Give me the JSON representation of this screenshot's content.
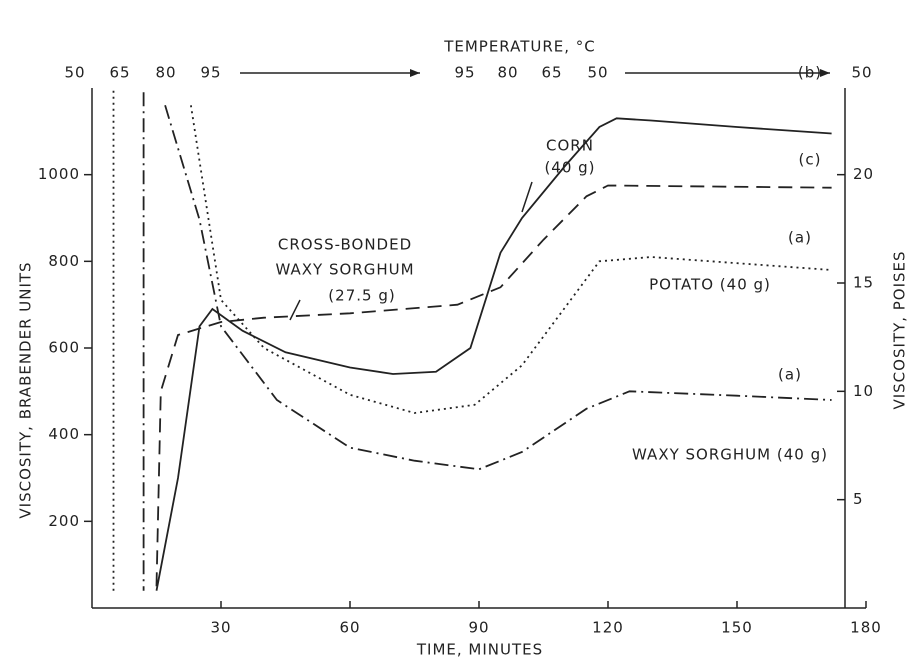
{
  "chart_data": {
    "type": "line",
    "top_axis_title": "TEMPERATURE, °C",
    "top_axis_labels": [
      50,
      65,
      80,
      95,
      95,
      80,
      65,
      50,
      50
    ],
    "xlabel": "TIME, MINUTES",
    "ylabel": "VISCOSITY, BRABENDER UNITS",
    "y2label": "VISCOSITY, POISES",
    "xlim": [
      0,
      180
    ],
    "xticks": [
      30,
      60,
      90,
      120,
      150,
      180
    ],
    "ylim": [
      0,
      1200
    ],
    "yticks": [
      200,
      400,
      600,
      800,
      1000
    ],
    "y2lim": [
      0,
      24
    ],
    "y2ticks": [
      5,
      10,
      15,
      20
    ],
    "series": [
      {
        "color": "#222",
        "style": "solid",
        "x": [
          15,
          20,
          25,
          28,
          35,
          45,
          60,
          70,
          80,
          88,
          95,
          100,
          110,
          118,
          122,
          130,
          150,
          172
        ],
        "values": [
          40,
          300,
          650,
          690,
          640,
          590,
          555,
          540,
          545,
          600,
          820,
          900,
          1020,
          1110,
          1130,
          1125,
          1110,
          1095
        ]
      },
      {
        "color": "#222",
        "style": "dashed",
        "x": [
          15,
          16,
          20,
          30,
          40,
          60,
          85,
          95,
          105,
          115,
          120,
          172
        ],
        "values": [
          50,
          500,
          630,
          660,
          670,
          680,
          700,
          740,
          850,
          950,
          975,
          970
        ]
      },
      {
        "color": "#222",
        "style": "dotted",
        "x": [
          5,
          5,
          20,
          23,
          30,
          40,
          60,
          75,
          89,
          100,
          118,
          130,
          172
        ],
        "values": [
          40,
          1200,
          null,
          1160,
          711,
          600,
          492,
          450,
          469,
          560,
          800,
          810,
          780
        ]
      },
      {
        "color": "#222",
        "style": "dashdot",
        "x": [
          12,
          12,
          16,
          17,
          25,
          30,
          43,
          60,
          75,
          90,
          100,
          115,
          125,
          150,
          172
        ],
        "values": [
          1190,
          40,
          null,
          1160,
          896,
          650,
          480,
          370,
          340,
          320,
          360,
          460,
          500,
          490,
          480
        ]
      }
    ],
    "annotations": [
      "(b)",
      "CORN",
      "(40 g)",
      "(c)",
      "(a)",
      "CROSS-BONDED",
      "WAXY SORGHUM",
      "(27.5 g)",
      "POTATO (40 g)",
      "(a)",
      "WAXY SORGHUM (40 g)"
    ]
  }
}
